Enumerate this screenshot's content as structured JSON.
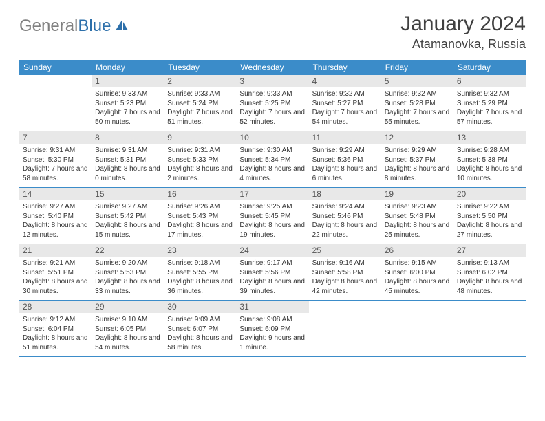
{
  "logo": {
    "part1": "General",
    "part2": "Blue"
  },
  "title": "January 2024",
  "location": "Atamanovka, Russia",
  "colors": {
    "header_bg": "#3b8cc9",
    "header_text": "#ffffff",
    "daynum_bg": "#e8e8e8",
    "daynum_text": "#555555",
    "border": "#3b8cc9",
    "logo_gray": "#808080",
    "logo_blue": "#2c6faa"
  },
  "weekdays": [
    "Sunday",
    "Monday",
    "Tuesday",
    "Wednesday",
    "Thursday",
    "Friday",
    "Saturday"
  ],
  "weeks": [
    [
      {
        "n": "",
        "sr": "",
        "ss": "",
        "dl": ""
      },
      {
        "n": "1",
        "sr": "Sunrise: 9:33 AM",
        "ss": "Sunset: 5:23 PM",
        "dl": "Daylight: 7 hours and 50 minutes."
      },
      {
        "n": "2",
        "sr": "Sunrise: 9:33 AM",
        "ss": "Sunset: 5:24 PM",
        "dl": "Daylight: 7 hours and 51 minutes."
      },
      {
        "n": "3",
        "sr": "Sunrise: 9:33 AM",
        "ss": "Sunset: 5:25 PM",
        "dl": "Daylight: 7 hours and 52 minutes."
      },
      {
        "n": "4",
        "sr": "Sunrise: 9:32 AM",
        "ss": "Sunset: 5:27 PM",
        "dl": "Daylight: 7 hours and 54 minutes."
      },
      {
        "n": "5",
        "sr": "Sunrise: 9:32 AM",
        "ss": "Sunset: 5:28 PM",
        "dl": "Daylight: 7 hours and 55 minutes."
      },
      {
        "n": "6",
        "sr": "Sunrise: 9:32 AM",
        "ss": "Sunset: 5:29 PM",
        "dl": "Daylight: 7 hours and 57 minutes."
      }
    ],
    [
      {
        "n": "7",
        "sr": "Sunrise: 9:31 AM",
        "ss": "Sunset: 5:30 PM",
        "dl": "Daylight: 7 hours and 58 minutes."
      },
      {
        "n": "8",
        "sr": "Sunrise: 9:31 AM",
        "ss": "Sunset: 5:31 PM",
        "dl": "Daylight: 8 hours and 0 minutes."
      },
      {
        "n": "9",
        "sr": "Sunrise: 9:31 AM",
        "ss": "Sunset: 5:33 PM",
        "dl": "Daylight: 8 hours and 2 minutes."
      },
      {
        "n": "10",
        "sr": "Sunrise: 9:30 AM",
        "ss": "Sunset: 5:34 PM",
        "dl": "Daylight: 8 hours and 4 minutes."
      },
      {
        "n": "11",
        "sr": "Sunrise: 9:29 AM",
        "ss": "Sunset: 5:36 PM",
        "dl": "Daylight: 8 hours and 6 minutes."
      },
      {
        "n": "12",
        "sr": "Sunrise: 9:29 AM",
        "ss": "Sunset: 5:37 PM",
        "dl": "Daylight: 8 hours and 8 minutes."
      },
      {
        "n": "13",
        "sr": "Sunrise: 9:28 AM",
        "ss": "Sunset: 5:38 PM",
        "dl": "Daylight: 8 hours and 10 minutes."
      }
    ],
    [
      {
        "n": "14",
        "sr": "Sunrise: 9:27 AM",
        "ss": "Sunset: 5:40 PM",
        "dl": "Daylight: 8 hours and 12 minutes."
      },
      {
        "n": "15",
        "sr": "Sunrise: 9:27 AM",
        "ss": "Sunset: 5:42 PM",
        "dl": "Daylight: 8 hours and 15 minutes."
      },
      {
        "n": "16",
        "sr": "Sunrise: 9:26 AM",
        "ss": "Sunset: 5:43 PM",
        "dl": "Daylight: 8 hours and 17 minutes."
      },
      {
        "n": "17",
        "sr": "Sunrise: 9:25 AM",
        "ss": "Sunset: 5:45 PM",
        "dl": "Daylight: 8 hours and 19 minutes."
      },
      {
        "n": "18",
        "sr": "Sunrise: 9:24 AM",
        "ss": "Sunset: 5:46 PM",
        "dl": "Daylight: 8 hours and 22 minutes."
      },
      {
        "n": "19",
        "sr": "Sunrise: 9:23 AM",
        "ss": "Sunset: 5:48 PM",
        "dl": "Daylight: 8 hours and 25 minutes."
      },
      {
        "n": "20",
        "sr": "Sunrise: 9:22 AM",
        "ss": "Sunset: 5:50 PM",
        "dl": "Daylight: 8 hours and 27 minutes."
      }
    ],
    [
      {
        "n": "21",
        "sr": "Sunrise: 9:21 AM",
        "ss": "Sunset: 5:51 PM",
        "dl": "Daylight: 8 hours and 30 minutes."
      },
      {
        "n": "22",
        "sr": "Sunrise: 9:20 AM",
        "ss": "Sunset: 5:53 PM",
        "dl": "Daylight: 8 hours and 33 minutes."
      },
      {
        "n": "23",
        "sr": "Sunrise: 9:18 AM",
        "ss": "Sunset: 5:55 PM",
        "dl": "Daylight: 8 hours and 36 minutes."
      },
      {
        "n": "24",
        "sr": "Sunrise: 9:17 AM",
        "ss": "Sunset: 5:56 PM",
        "dl": "Daylight: 8 hours and 39 minutes."
      },
      {
        "n": "25",
        "sr": "Sunrise: 9:16 AM",
        "ss": "Sunset: 5:58 PM",
        "dl": "Daylight: 8 hours and 42 minutes."
      },
      {
        "n": "26",
        "sr": "Sunrise: 9:15 AM",
        "ss": "Sunset: 6:00 PM",
        "dl": "Daylight: 8 hours and 45 minutes."
      },
      {
        "n": "27",
        "sr": "Sunrise: 9:13 AM",
        "ss": "Sunset: 6:02 PM",
        "dl": "Daylight: 8 hours and 48 minutes."
      }
    ],
    [
      {
        "n": "28",
        "sr": "Sunrise: 9:12 AM",
        "ss": "Sunset: 6:04 PM",
        "dl": "Daylight: 8 hours and 51 minutes."
      },
      {
        "n": "29",
        "sr": "Sunrise: 9:10 AM",
        "ss": "Sunset: 6:05 PM",
        "dl": "Daylight: 8 hours and 54 minutes."
      },
      {
        "n": "30",
        "sr": "Sunrise: 9:09 AM",
        "ss": "Sunset: 6:07 PM",
        "dl": "Daylight: 8 hours and 58 minutes."
      },
      {
        "n": "31",
        "sr": "Sunrise: 9:08 AM",
        "ss": "Sunset: 6:09 PM",
        "dl": "Daylight: 9 hours and 1 minute."
      },
      {
        "n": "",
        "sr": "",
        "ss": "",
        "dl": ""
      },
      {
        "n": "",
        "sr": "",
        "ss": "",
        "dl": ""
      },
      {
        "n": "",
        "sr": "",
        "ss": "",
        "dl": ""
      }
    ]
  ]
}
